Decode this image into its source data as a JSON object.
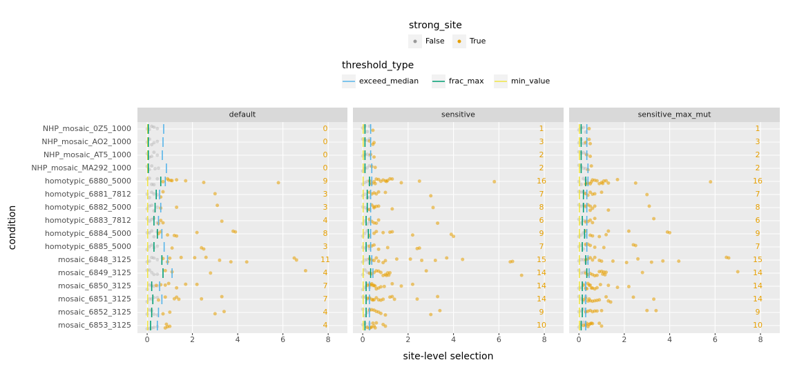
{
  "chart_data": {
    "type": "strip",
    "xlabel": "site-level selection",
    "ylabel": "condition",
    "xlim": [
      -0.43,
      8.85
    ],
    "xticks": [
      0,
      2,
      4,
      6,
      8
    ],
    "grid": true,
    "count_color": "#E69F00",
    "categories": [
      "NHP_mosaic_0Z5_1000",
      "NHP_mosaic_AO2_1000",
      "NHP_mosaic_AT5_1000",
      "NHP_mosaic_MA292_1000",
      "homotypic_6880_5000",
      "homotypic_6881_7812",
      "homotypic_6882_5000",
      "homotypic_6883_7812",
      "homotypic_6884_5000",
      "homotypic_6885_5000",
      "mosaic_6848_3125",
      "mosaic_6849_3125",
      "mosaic_6850_3125",
      "mosaic_6851_3125",
      "mosaic_6852_3125",
      "mosaic_6853_3125"
    ],
    "legends": [
      {
        "title": "strong_site",
        "kind": "point",
        "entries": [
          {
            "name": "False",
            "color": "#999999"
          },
          {
            "name": "True",
            "color": "#E69F00"
          }
        ]
      },
      {
        "title": "threshold_type",
        "kind": "line",
        "entries": [
          {
            "name": "exceed_median",
            "color": "#56B4E9"
          },
          {
            "name": "frac_max",
            "color": "#009E73"
          },
          {
            "name": "min_value",
            "color": "#F0E442"
          }
        ]
      }
    ],
    "facets": [
      {
        "title": "default",
        "counts": [
          0,
          0,
          0,
          0,
          9,
          3,
          3,
          4,
          8,
          3,
          11,
          4,
          7,
          7,
          4,
          4
        ],
        "thresholds": {
          "exceed_median": [
            0.73,
            0.7,
            0.67,
            0.85,
            0.8,
            0.55,
            0.6,
            0.5,
            0.65,
            0.75,
            0.9,
            1.1,
            0.55,
            0.65,
            0.5,
            0.45
          ],
          "frac_max": [
            0.05,
            0.05,
            0.05,
            0.05,
            0.6,
            0.4,
            0.35,
            0.3,
            0.45,
            0.3,
            0.65,
            0.7,
            0.2,
            0.25,
            0.2,
            0.15
          ],
          "min_value": [
            0.02,
            0.02,
            0.02,
            0.02,
            0.02,
            0.02,
            0.02,
            0.02,
            0.02,
            0.02,
            0.02,
            0.02,
            0.02,
            0.02,
            0.02,
            0.02
          ]
        },
        "true_x": [
          [],
          [],
          [],
          [],
          [
            0.7,
            0.9,
            1.05,
            1.1,
            1.3,
            1.7,
            2.5,
            5.8,
            0.95
          ],
          [
            0.6,
            0.7,
            3.0
          ],
          [
            0.6,
            1.3,
            3.1
          ],
          [
            0.5,
            0.6,
            0.7,
            3.3
          ],
          [
            0.5,
            0.6,
            1.2,
            1.3,
            2.2,
            3.8,
            3.9,
            0.9
          ],
          [
            1.1,
            2.4,
            2.5
          ],
          [
            0.7,
            0.9,
            1.0,
            1.5,
            2.1,
            2.6,
            3.2,
            3.7,
            4.4,
            6.5,
            6.6
          ],
          [
            0.8,
            1.1,
            2.8,
            7.0
          ],
          [
            0.4,
            0.6,
            0.8,
            1.3,
            1.7,
            2.2,
            0.95
          ],
          [
            0.5,
            0.8,
            1.2,
            1.3,
            1.4,
            2.4,
            3.3
          ],
          [
            0.7,
            1.0,
            3.0,
            3.4
          ],
          [
            0.8,
            0.9,
            1.0,
            0.85
          ]
        ],
        "false_x": [
          [
            0,
            0.1,
            0.2,
            0.3,
            0.45
          ],
          [
            0,
            0.1,
            0.2,
            0.3,
            0.45
          ],
          [
            0,
            0.1,
            0.2,
            0.3,
            0.45
          ],
          [
            0,
            0.1,
            0.2,
            0.35,
            0.5
          ],
          [
            0,
            0.1,
            0.2,
            0.3,
            0.45
          ],
          [
            0,
            0.1,
            0.2,
            0.3,
            0.45
          ],
          [
            0,
            0.1,
            0.2,
            0.3,
            0.45
          ],
          [
            0,
            0.1,
            0.2,
            0.3,
            0.45
          ],
          [
            0,
            0.1,
            0.2,
            0.3,
            0.45
          ],
          [
            0,
            0.1,
            0.2,
            0.3,
            0.45
          ],
          [
            0,
            0.1,
            0.2,
            0.3,
            0.45
          ],
          [
            0,
            0.1,
            0.2,
            0.3,
            0.45
          ],
          [
            0,
            0.1,
            0.2,
            0.3,
            0.45
          ],
          [
            0,
            0.1,
            0.2,
            0.3,
            0.45
          ],
          [
            0,
            0.1,
            0.2,
            0.3,
            0.45
          ],
          [
            0,
            0.1,
            0.2,
            0.3,
            0.45
          ]
        ]
      },
      {
        "title": "sensitive",
        "counts": [
          1,
          3,
          2,
          2,
          16,
          7,
          8,
          6,
          9,
          7,
          15,
          14,
          14,
          14,
          9,
          10
        ],
        "thresholds": {
          "exceed_median": [
            0.35,
            0.35,
            0.35,
            0.4,
            0.4,
            0.35,
            0.35,
            0.35,
            0.35,
            0.35,
            0.4,
            0.45,
            0.3,
            0.3,
            0.3,
            0.3
          ],
          "frac_max": [
            0.1,
            0.1,
            0.1,
            0.1,
            0.3,
            0.2,
            0.2,
            0.15,
            0.25,
            0.15,
            0.3,
            0.35,
            0.15,
            0.15,
            0.15,
            0.1
          ],
          "min_value": [
            0.02,
            0.02,
            0.02,
            0.02,
            0.02,
            0.02,
            0.02,
            0.02,
            0.02,
            0.02,
            0.02,
            0.02,
            0.02,
            0.02,
            0.02,
            0.02
          ]
        },
        "true_x": [
          [
            0.45
          ],
          [
            0.3,
            0.45,
            0.5
          ],
          [
            0.35,
            0.5
          ],
          [
            0.4,
            0.55
          ],
          [
            0.3,
            0.4,
            0.5,
            0.6,
            0.7,
            0.8,
            0.9,
            1.0,
            1.05,
            1.1,
            1.2,
            1.3,
            1.7,
            2.5,
            5.8,
            0.55
          ],
          [
            0.3,
            0.4,
            0.5,
            0.6,
            0.7,
            1.0,
            3.0
          ],
          [
            0.3,
            0.4,
            0.5,
            0.6,
            0.5,
            0.7,
            1.3,
            3.1
          ],
          [
            0.3,
            0.4,
            0.5,
            0.6,
            0.7,
            3.3
          ],
          [
            0.3,
            0.5,
            0.6,
            1.2,
            1.3,
            2.2,
            3.9,
            4.0,
            0.9
          ],
          [
            0.3,
            0.4,
            0.5,
            0.7,
            1.1,
            2.4,
            2.5
          ],
          [
            0.3,
            0.5,
            0.6,
            0.7,
            0.9,
            1.0,
            1.5,
            2.1,
            2.6,
            3.2,
            3.7,
            4.4,
            6.5,
            6.6,
            0.4
          ],
          [
            0.3,
            0.4,
            0.5,
            0.6,
            0.7,
            0.8,
            0.9,
            1.0,
            1.05,
            1.1,
            1.15,
            1.2,
            2.8,
            7.0
          ],
          [
            0.2,
            0.3,
            0.35,
            0.4,
            0.45,
            0.5,
            0.6,
            0.7,
            0.8,
            0.95,
            1.3,
            1.7,
            2.2,
            0.55
          ],
          [
            0.2,
            0.3,
            0.4,
            0.5,
            0.6,
            0.7,
            0.8,
            0.9,
            1.2,
            1.3,
            1.4,
            2.4,
            3.3,
            0.45
          ],
          [
            0.3,
            0.5,
            0.6,
            0.7,
            0.8,
            1.0,
            3.0,
            3.4,
            0.4
          ],
          [
            0.2,
            0.3,
            0.35,
            0.4,
            0.5,
            0.55,
            0.6,
            0.9,
            1.0,
            0.45
          ]
        ],
        "false_x": [
          [
            0,
            0.1,
            0.2,
            0.3
          ],
          [
            0,
            0.1,
            0.2,
            0.3
          ],
          [
            0,
            0.1,
            0.2,
            0.3
          ],
          [
            0,
            0.1,
            0.2,
            0.3
          ],
          [
            0,
            0.1,
            0.2,
            0.3
          ],
          [
            0,
            0.1,
            0.2,
            0.3
          ],
          [
            0,
            0.1,
            0.2,
            0.3
          ],
          [
            0,
            0.1,
            0.2,
            0.3
          ],
          [
            0,
            0.1,
            0.2,
            0.3
          ],
          [
            0,
            0.1,
            0.2,
            0.3
          ],
          [
            0,
            0.1,
            0.2,
            0.3
          ],
          [
            0,
            0.1,
            0.2,
            0.3
          ],
          [
            0,
            0.1,
            0.2,
            0.3
          ],
          [
            0,
            0.1,
            0.2,
            0.3
          ],
          [
            0,
            0.1,
            0.2,
            0.3
          ],
          [
            0,
            0.1,
            0.2,
            0.3
          ]
        ]
      },
      {
        "title": "sensitive_max_mut",
        "counts": [
          1,
          3,
          2,
          2,
          16,
          7,
          8,
          6,
          9,
          7,
          15,
          14,
          14,
          14,
          9,
          10
        ],
        "thresholds": {
          "exceed_median": [
            0.35,
            0.35,
            0.35,
            0.4,
            0.4,
            0.35,
            0.35,
            0.35,
            0.35,
            0.35,
            0.4,
            0.45,
            0.3,
            0.3,
            0.3,
            0.3
          ],
          "frac_max": [
            0.1,
            0.1,
            0.1,
            0.1,
            0.3,
            0.2,
            0.2,
            0.15,
            0.25,
            0.15,
            0.3,
            0.35,
            0.15,
            0.15,
            0.15,
            0.1
          ],
          "min_value": [
            0.02,
            0.02,
            0.02,
            0.02,
            0.02,
            0.02,
            0.02,
            0.02,
            0.02,
            0.02,
            0.02,
            0.02,
            0.02,
            0.02,
            0.02,
            0.02
          ]
        },
        "true_x": [
          [
            0.45
          ],
          [
            0.3,
            0.45,
            0.5
          ],
          [
            0.35,
            0.5
          ],
          [
            0.4,
            0.55
          ],
          [
            0.3,
            0.4,
            0.5,
            0.6,
            0.7,
            0.8,
            0.9,
            1.0,
            1.05,
            1.1,
            1.2,
            1.3,
            1.7,
            2.5,
            5.8,
            0.55
          ],
          [
            0.3,
            0.4,
            0.5,
            0.6,
            0.7,
            1.0,
            3.0
          ],
          [
            0.3,
            0.4,
            0.5,
            0.6,
            0.5,
            0.7,
            1.3,
            3.1
          ],
          [
            0.3,
            0.4,
            0.5,
            0.6,
            0.7,
            3.3
          ],
          [
            0.3,
            0.5,
            0.6,
            1.2,
            1.3,
            2.2,
            3.9,
            4.0,
            0.9
          ],
          [
            0.3,
            0.4,
            0.5,
            0.7,
            1.1,
            2.4,
            2.5
          ],
          [
            0.3,
            0.5,
            0.6,
            0.7,
            0.9,
            1.0,
            1.5,
            2.1,
            2.6,
            3.2,
            3.7,
            4.4,
            6.5,
            6.6,
            0.4
          ],
          [
            0.3,
            0.4,
            0.5,
            0.6,
            0.7,
            0.8,
            0.9,
            1.0,
            1.05,
            1.1,
            1.15,
            1.2,
            2.8,
            7.0
          ],
          [
            0.2,
            0.3,
            0.35,
            0.4,
            0.45,
            0.5,
            0.6,
            0.7,
            0.8,
            0.95,
            1.3,
            1.7,
            2.2,
            0.55
          ],
          [
            0.2,
            0.3,
            0.4,
            0.5,
            0.6,
            0.7,
            0.8,
            0.9,
            1.2,
            1.3,
            1.4,
            2.4,
            3.3,
            0.45
          ],
          [
            0.3,
            0.5,
            0.6,
            0.7,
            0.8,
            1.0,
            3.0,
            3.4,
            0.4
          ],
          [
            0.2,
            0.3,
            0.35,
            0.4,
            0.5,
            0.55,
            0.6,
            0.9,
            1.0,
            0.45
          ]
        ],
        "false_x": [
          [
            0,
            0.1,
            0.2,
            0.3
          ],
          [
            0,
            0.1,
            0.2,
            0.3
          ],
          [
            0,
            0.1,
            0.2,
            0.3
          ],
          [
            0,
            0.1,
            0.2,
            0.3
          ],
          [
            0,
            0.1,
            0.2,
            0.3
          ],
          [
            0,
            0.1,
            0.2,
            0.3
          ],
          [
            0,
            0.1,
            0.2,
            0.3
          ],
          [
            0,
            0.1,
            0.2,
            0.3
          ],
          [
            0,
            0.1,
            0.2,
            0.3
          ],
          [
            0,
            0.1,
            0.2,
            0.3
          ],
          [
            0,
            0.1,
            0.2,
            0.3
          ],
          [
            0,
            0.1,
            0.2,
            0.3
          ],
          [
            0,
            0.1,
            0.2,
            0.3
          ],
          [
            0,
            0.1,
            0.2,
            0.3
          ],
          [
            0,
            0.1,
            0.2,
            0.3
          ],
          [
            0,
            0.1,
            0.2,
            0.3
          ]
        ]
      }
    ]
  }
}
